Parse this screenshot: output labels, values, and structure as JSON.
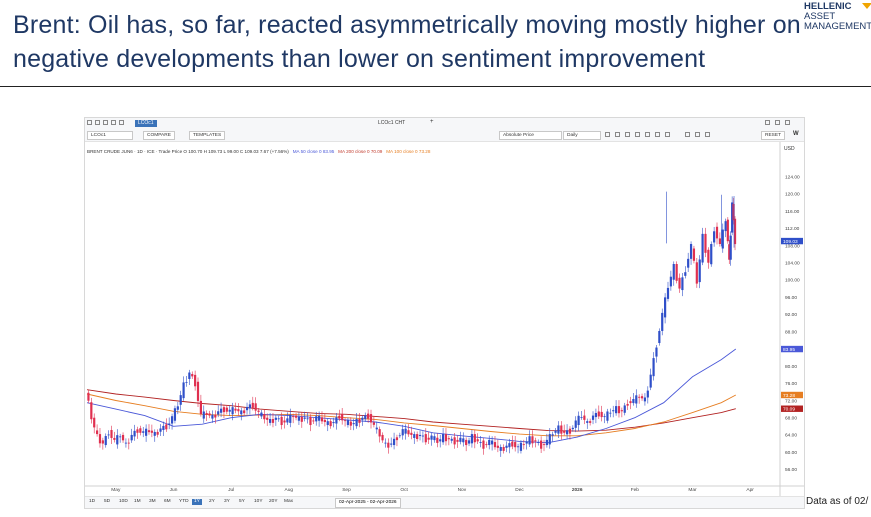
{
  "slide": {
    "title": "Brent: Oil has, so far, reacted asymmetrically moving mostly higher on negative developments than lower on sentiment improvement",
    "logo_line1": "HELLENIC",
    "logo_line2": "ASSET",
    "logo_line3": "MANAGEMENT",
    "footnote": "Data as of 02/"
  },
  "toolbar": {
    "ticker_input": "LCOc1",
    "tab_active": "LCOc1",
    "tab_second": "LCOc1  CHT",
    "compare_label": "COMPARE",
    "templates_label": "TEMPLATES",
    "price_mode": "Absolute Price",
    "interval": "Daily",
    "reset_label": "RESET",
    "legend_main": "BRENT CRUDE JUN6 · 1D · ICE  ·  Trade Price O 100.70  H 109.73  L 99.00  C 109.03  7.67 (+7.56%)",
    "legend_ma50": "MA 50 close 0  83.95",
    "legend_ma200": "MA 200 close 0  70.09",
    "legend_ma100": "MA 100 close 0  73.28"
  },
  "range_buttons": [
    "1D",
    "5D",
    "10D",
    "1M",
    "3M",
    "6M",
    "YTD",
    "1Y",
    "2Y",
    "3Y",
    "5Y",
    "10Y",
    "20Y",
    "Max"
  ],
  "range_active": "1Y",
  "date_range_text": "02-Apr-2025  -  02-Apr-2026",
  "colors": {
    "up": "#2f4fc9",
    "down": "#e02f4f",
    "ma50": "#4a58d8",
    "ma200": "#b22222",
    "ma100": "#e67e22",
    "title": "#1f3864"
  },
  "chart_data": {
    "type": "candlestick",
    "currency": "USD",
    "ylim": [
      54,
      126
    ],
    "y_ticks": [
      56,
      60,
      64,
      68,
      72,
      76,
      80,
      84,
      88,
      92,
      96,
      100,
      104,
      108,
      112,
      116,
      120,
      124
    ],
    "y_tick_labels": [
      "56.00",
      "60.00",
      "64.00",
      "68.00",
      "72.00",
      "76.00",
      "80.00",
      "84.00",
      "88.00",
      "92.00",
      "96.00",
      "100.00",
      "104.00",
      "108.00",
      "112.00",
      "116.00",
      "120.00",
      "124.00"
    ],
    "x_labels": [
      "May",
      "Jun",
      "Jul",
      "Aug",
      "Sep",
      "Oct",
      "Nov",
      "Dec",
      "2026",
      "Feb",
      "Mar",
      "Apr"
    ],
    "x_label_positions": [
      0.5,
      1.5,
      2.5,
      3.5,
      4.5,
      5.5,
      6.5,
      7.5,
      8.5,
      9.5,
      10.5,
      11.5
    ],
    "x_domain": [
      0,
      12
    ],
    "last_price_tags": [
      {
        "label": "109.03",
        "value": 109.03,
        "color": "#2f4fc9"
      },
      {
        "label": "83.95",
        "value": 83.95,
        "color": "#4a58d8"
      },
      {
        "label": "73.28",
        "value": 73.28,
        "color": "#e67e22"
      },
      {
        "label": "70.09",
        "value": 70.09,
        "color": "#b22222"
      }
    ],
    "close_path": [
      [
        0.0,
        74.5
      ],
      [
        0.1,
        68.0
      ],
      [
        0.2,
        63.5
      ],
      [
        0.3,
        62.0
      ],
      [
        0.4,
        64.8
      ],
      [
        0.5,
        62.5
      ],
      [
        0.6,
        64.0
      ],
      [
        0.7,
        61.5
      ],
      [
        0.8,
        64.0
      ],
      [
        0.9,
        65.2
      ],
      [
        1.0,
        64.5
      ],
      [
        1.1,
        65.0
      ],
      [
        1.2,
        64.0
      ],
      [
        1.3,
        65.5
      ],
      [
        1.4,
        66.0
      ],
      [
        1.5,
        68.0
      ],
      [
        1.6,
        71.0
      ],
      [
        1.7,
        75.5
      ],
      [
        1.8,
        78.5
      ],
      [
        1.9,
        76.0
      ],
      [
        2.0,
        68.5
      ],
      [
        2.1,
        69.0
      ],
      [
        2.2,
        68.0
      ],
      [
        2.3,
        69.5
      ],
      [
        2.4,
        70.0
      ],
      [
        2.5,
        69.5
      ],
      [
        2.6,
        70.0
      ],
      [
        2.7,
        69.0
      ],
      [
        2.8,
        70.5
      ],
      [
        2.9,
        71.0
      ],
      [
        3.0,
        69.0
      ],
      [
        3.1,
        68.0
      ],
      [
        3.2,
        67.0
      ],
      [
        3.3,
        68.0
      ],
      [
        3.4,
        67.0
      ],
      [
        3.5,
        67.5
      ],
      [
        3.6,
        68.5
      ],
      [
        3.7,
        67.5
      ],
      [
        3.8,
        68.0
      ],
      [
        3.9,
        67.0
      ],
      [
        4.0,
        68.0
      ],
      [
        4.1,
        67.5
      ],
      [
        4.2,
        66.5
      ],
      [
        4.3,
        67.0
      ],
      [
        4.4,
        68.5
      ],
      [
        4.5,
        67.0
      ],
      [
        4.6,
        66.5
      ],
      [
        4.7,
        67.0
      ],
      [
        4.8,
        68.0
      ],
      [
        4.9,
        68.5
      ],
      [
        5.0,
        66.0
      ],
      [
        5.1,
        64.0
      ],
      [
        5.2,
        61.5
      ],
      [
        5.3,
        62.0
      ],
      [
        5.4,
        63.5
      ],
      [
        5.5,
        65.0
      ],
      [
        5.6,
        64.5
      ],
      [
        5.7,
        63.5
      ],
      [
        5.8,
        64.0
      ],
      [
        5.9,
        63.0
      ],
      [
        6.0,
        63.5
      ],
      [
        6.1,
        62.5
      ],
      [
        6.2,
        63.5
      ],
      [
        6.3,
        63.0
      ],
      [
        6.4,
        62.5
      ],
      [
        6.5,
        63.0
      ],
      [
        6.6,
        62.0
      ],
      [
        6.7,
        63.5
      ],
      [
        6.8,
        62.5
      ],
      [
        6.9,
        61.5
      ],
      [
        7.0,
        62.5
      ],
      [
        7.1,
        61.5
      ],
      [
        7.2,
        60.5
      ],
      [
        7.3,
        61.5
      ],
      [
        7.4,
        62.0
      ],
      [
        7.5,
        61.0
      ],
      [
        7.6,
        62.0
      ],
      [
        7.7,
        63.0
      ],
      [
        7.8,
        62.5
      ],
      [
        7.9,
        61.5
      ],
      [
        8.0,
        62.5
      ],
      [
        8.1,
        64.5
      ],
      [
        8.2,
        65.5
      ],
      [
        8.3,
        64.5
      ],
      [
        8.4,
        65.0
      ],
      [
        8.5,
        67.0
      ],
      [
        8.6,
        68.5
      ],
      [
        8.7,
        66.5
      ],
      [
        8.8,
        68.5
      ],
      [
        8.9,
        69.0
      ],
      [
        9.0,
        68.0
      ],
      [
        9.1,
        69.5
      ],
      [
        9.2,
        70.0
      ],
      [
        9.3,
        69.5
      ],
      [
        9.4,
        71.5
      ],
      [
        9.5,
        72.0
      ],
      [
        9.6,
        73.0
      ],
      [
        9.7,
        72.0
      ],
      [
        9.8,
        78.0
      ],
      [
        9.9,
        85.0
      ],
      [
        10.0,
        92.0
      ],
      [
        10.1,
        98.5
      ],
      [
        10.2,
        103.0
      ],
      [
        10.3,
        98.0
      ],
      [
        10.4,
        102.5
      ],
      [
        10.5,
        108.0
      ],
      [
        10.6,
        99.5
      ],
      [
        10.7,
        110.0
      ],
      [
        10.8,
        104.0
      ],
      [
        10.9,
        112.0
      ],
      [
        11.0,
        108.0
      ],
      [
        11.1,
        114.0
      ],
      [
        11.15,
        104.0
      ],
      [
        11.2,
        118.0
      ],
      [
        11.25,
        109.03
      ]
    ],
    "ma50_path": [
      [
        0.0,
        71.5
      ],
      [
        0.5,
        70.0
      ],
      [
        1.0,
        68.5
      ],
      [
        1.5,
        66.0
      ],
      [
        2.0,
        66.5
      ],
      [
        2.5,
        68.0
      ],
      [
        3.0,
        68.8
      ],
      [
        3.5,
        68.5
      ],
      [
        4.0,
        68.0
      ],
      [
        4.5,
        67.5
      ],
      [
        5.0,
        67.0
      ],
      [
        5.5,
        66.0
      ],
      [
        6.0,
        64.5
      ],
      [
        6.5,
        63.8
      ],
      [
        7.0,
        63.2
      ],
      [
        7.5,
        62.5
      ],
      [
        8.0,
        62.2
      ],
      [
        8.5,
        63.5
      ],
      [
        9.0,
        65.5
      ],
      [
        9.5,
        68.0
      ],
      [
        10.0,
        71.5
      ],
      [
        10.5,
        77.5
      ],
      [
        11.0,
        81.5
      ],
      [
        11.25,
        83.95
      ]
    ],
    "ma200_path": [
      [
        0.0,
        74.5
      ],
      [
        0.5,
        73.5
      ],
      [
        1.0,
        72.8
      ],
      [
        1.5,
        72.0
      ],
      [
        2.0,
        71.3
      ],
      [
        2.5,
        70.8
      ],
      [
        3.0,
        70.0
      ],
      [
        3.5,
        69.5
      ],
      [
        4.0,
        69.0
      ],
      [
        4.5,
        68.8
      ],
      [
        5.0,
        68.3
      ],
      [
        5.5,
        67.8
      ],
      [
        6.0,
        67.0
      ],
      [
        6.5,
        66.5
      ],
      [
        7.0,
        66.0
      ],
      [
        7.5,
        65.5
      ],
      [
        8.0,
        65.0
      ],
      [
        8.5,
        64.9
      ],
      [
        9.0,
        65.1
      ],
      [
        9.5,
        65.8
      ],
      [
        10.0,
        66.8
      ],
      [
        10.5,
        68.0
      ],
      [
        11.0,
        69.2
      ],
      [
        11.25,
        70.09
      ]
    ],
    "ma100_path": [
      [
        0.0,
        73.5
      ],
      [
        0.5,
        72.0
      ],
      [
        1.0,
        70.8
      ],
      [
        1.5,
        69.5
      ],
      [
        2.0,
        68.8
      ],
      [
        2.5,
        68.5
      ],
      [
        3.0,
        68.6
      ],
      [
        3.5,
        68.8
      ],
      [
        4.0,
        68.5
      ],
      [
        4.5,
        68.0
      ],
      [
        5.0,
        67.6
      ],
      [
        5.5,
        66.8
      ],
      [
        6.0,
        66.2
      ],
      [
        6.5,
        65.5
      ],
      [
        7.0,
        64.8
      ],
      [
        7.5,
        64.2
      ],
      [
        8.0,
        63.8
      ],
      [
        8.5,
        63.8
      ],
      [
        9.0,
        64.5
      ],
      [
        9.5,
        65.5
      ],
      [
        10.0,
        67.0
      ],
      [
        10.5,
        69.2
      ],
      [
        11.0,
        71.5
      ],
      [
        11.25,
        73.28
      ]
    ]
  }
}
